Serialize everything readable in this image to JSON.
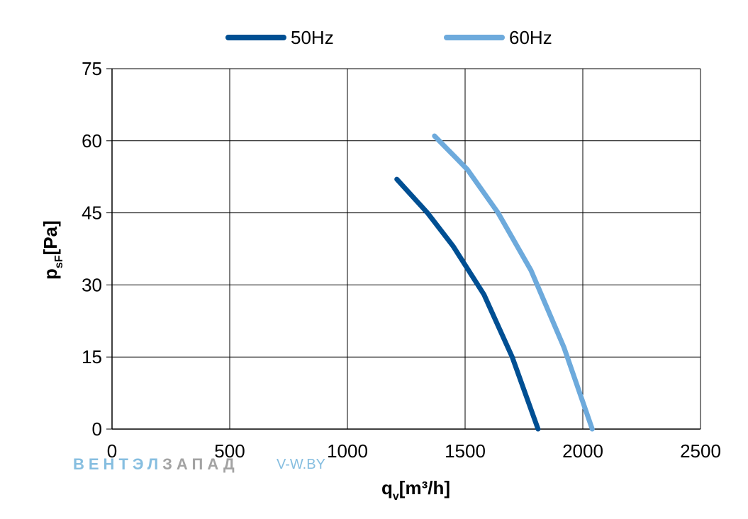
{
  "chart_data": {
    "type": "line",
    "xlabel_main": "q",
    "xlabel_sub": "v",
    "xlabel_unit": "[m³/h]",
    "ylabel_main": "p",
    "ylabel_sub": "sF",
    "ylabel_unit": "[Pa]",
    "xlim": [
      0,
      2500
    ],
    "ylim": [
      0,
      75
    ],
    "x_ticks": [
      "0",
      "500",
      "1000",
      "1500",
      "2000",
      "2500"
    ],
    "y_ticks": [
      "0",
      "15",
      "30",
      "45",
      "60",
      "75"
    ],
    "grid": true,
    "legend_position": "top",
    "series": [
      {
        "name": "50Hz",
        "color": "#004f93",
        "points": [
          [
            1210,
            52
          ],
          [
            1340,
            45
          ],
          [
            1450,
            38
          ],
          [
            1580,
            28
          ],
          [
            1700,
            15
          ],
          [
            1810,
            0
          ]
        ]
      },
      {
        "name": "60Hz",
        "color": "#6daadc",
        "points": [
          [
            1370,
            61
          ],
          [
            1510,
            54
          ],
          [
            1640,
            45
          ],
          [
            1780,
            33
          ],
          [
            1920,
            17
          ],
          [
            2040,
            0
          ]
        ]
      }
    ]
  },
  "watermark": {
    "brand_part1": "ВЕНТЭЛ",
    "brand_part2": "ЗАПАД",
    "site": "V-W.BY",
    "color1": "#7ab8dd",
    "color2": "#9a9a9a"
  }
}
